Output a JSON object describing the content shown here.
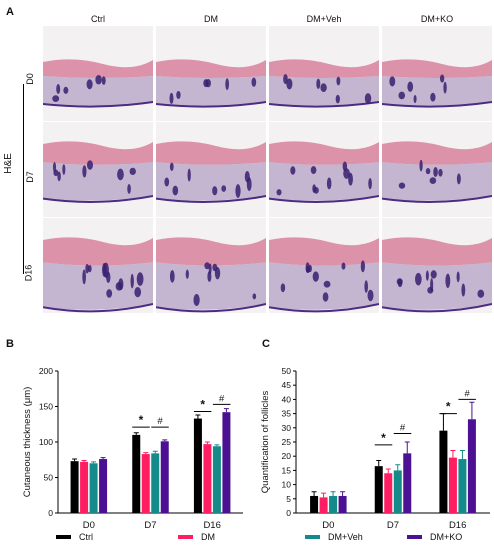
{
  "panels": {
    "a": "A",
    "b": "B",
    "c": "C"
  },
  "he_label": "H&E",
  "columns": [
    "Ctrl",
    "DM",
    "DM+Veh",
    "DM+KO"
  ],
  "rows": [
    "D0",
    "D7",
    "D16"
  ],
  "colors": {
    "Ctrl": "#000000",
    "DM": "#ff1e62",
    "DM+Veh": "#148a8a",
    "DM+KO": "#4b1192"
  },
  "legend": [
    {
      "name": "Ctrl",
      "color": "#000000"
    },
    {
      "name": "DM",
      "color": "#ff1e62"
    },
    {
      "name": "DM+Veh",
      "color": "#148a8a"
    },
    {
      "name": "DM+KO",
      "color": "#4b1192"
    }
  ],
  "chart_data": [
    {
      "type": "bar",
      "ylabel": "Cutaneous thickness (μm)",
      "categories": [
        "D0",
        "D7",
        "D16"
      ],
      "ylim": [
        0,
        200
      ],
      "yticks": [
        0,
        50,
        100,
        150,
        200
      ],
      "series": [
        {
          "name": "Ctrl",
          "values": [
            73,
            110,
            133
          ],
          "errors": [
            3,
            3,
            5
          ]
        },
        {
          "name": "DM",
          "values": [
            72,
            83,
            97
          ],
          "errors": [
            2,
            2,
            3
          ]
        },
        {
          "name": "DM+Veh",
          "values": [
            70,
            84,
            94
          ],
          "errors": [
            2,
            3,
            2
          ]
        },
        {
          "name": "DM+KO",
          "values": [
            76,
            101,
            142
          ],
          "errors": [
            2,
            2,
            5
          ]
        }
      ],
      "annotations": [
        {
          "symbol": "*",
          "category": "D7",
          "from": "Ctrl",
          "to": "DM",
          "y": 121
        },
        {
          "symbol": "#",
          "category": "D7",
          "from": "DM+Veh",
          "to": "DM+KO",
          "y": 121
        },
        {
          "symbol": "*",
          "category": "D16",
          "from": "Ctrl",
          "to": "DM",
          "y": 143
        },
        {
          "symbol": "#",
          "category": "D16",
          "from": "DM+Veh",
          "to": "DM+KO",
          "y": 153
        }
      ]
    },
    {
      "type": "bar",
      "ylabel": "Quantification of follicles",
      "categories": [
        "D0",
        "D7",
        "D16"
      ],
      "ylim": [
        0,
        50
      ],
      "yticks": [
        0,
        5,
        10,
        15,
        20,
        25,
        30,
        35,
        40,
        45,
        50
      ],
      "series": [
        {
          "name": "Ctrl",
          "values": [
            6,
            16.5,
            29
          ],
          "errors": [
            1.5,
            2,
            6
          ]
        },
        {
          "name": "DM",
          "values": [
            5.5,
            14,
            19.5
          ],
          "errors": [
            1.5,
            1.5,
            2.5
          ]
        },
        {
          "name": "DM+Veh",
          "values": [
            6,
            15,
            19
          ],
          "errors": [
            1.5,
            2,
            3
          ]
        },
        {
          "name": "DM+KO",
          "values": [
            6,
            21,
            33
          ],
          "errors": [
            1.5,
            4,
            6
          ]
        }
      ],
      "annotations": [
        {
          "symbol": "*",
          "category": "D7",
          "from": "Ctrl",
          "to": "DM",
          "y": 24
        },
        {
          "symbol": "#",
          "category": "D7",
          "from": "DM+Veh",
          "to": "DM+KO",
          "y": 28
        },
        {
          "symbol": "*",
          "category": "D16",
          "from": "Ctrl",
          "to": "DM",
          "y": 35
        },
        {
          "symbol": "#",
          "category": "D16",
          "from": "DM+Veh",
          "to": "DM+KO",
          "y": 40
        }
      ]
    }
  ]
}
